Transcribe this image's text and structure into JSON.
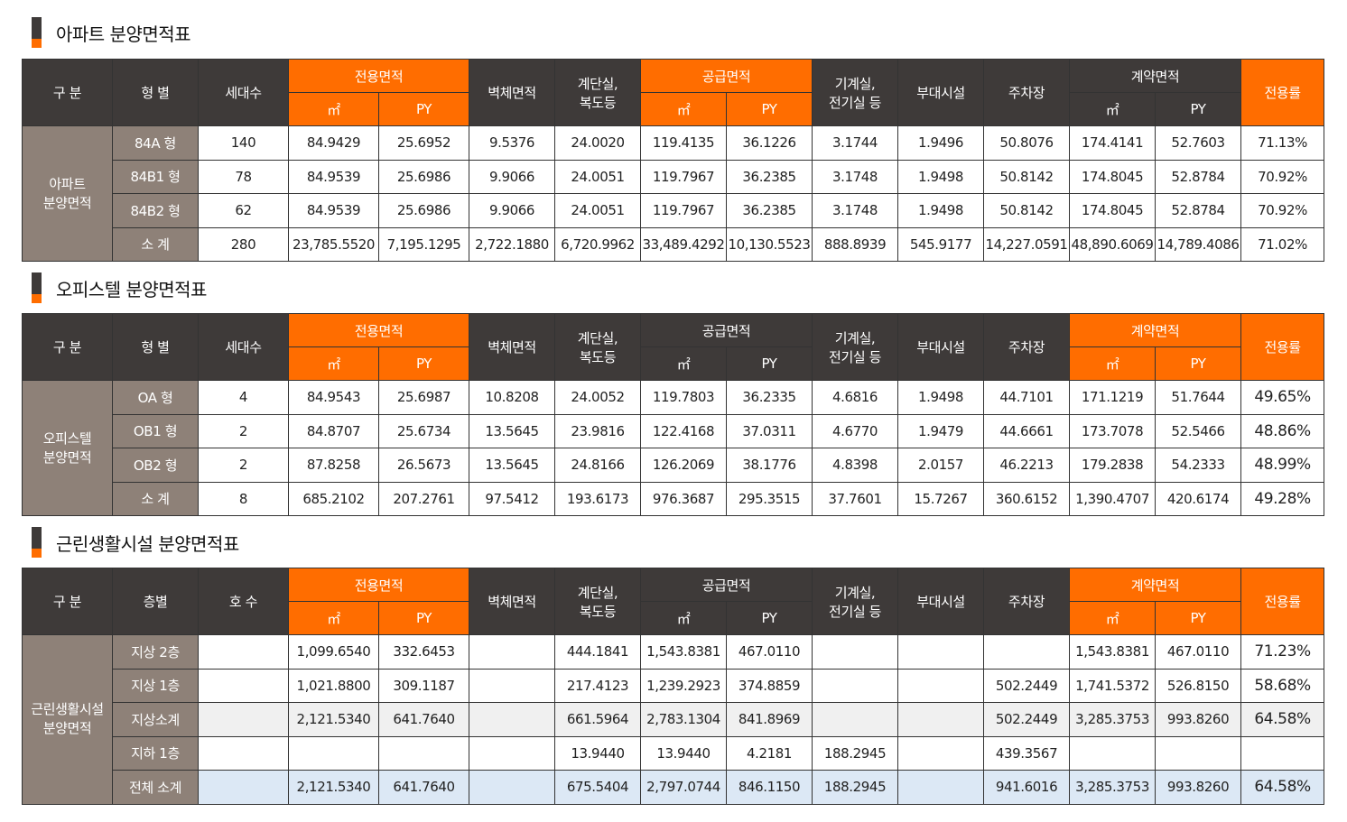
{
  "columns": {
    "gubun": "구 분",
    "type": "형 별",
    "floor": "층별",
    "units": "세대수",
    "unit_no": "호 수",
    "exclusive": "전용면적",
    "wall": "벽체면적",
    "stairs": "계단실,\n복도등",
    "supply": "공급면적",
    "machine": "기계실,\n전기실 등",
    "facility": "부대시설",
    "parking": "주차장",
    "contract": "계약면적",
    "ratio": "전용률",
    "m2": "㎡",
    "py": "PY"
  },
  "apt": {
    "title": "아파트 분양면적표",
    "group": "아파트\n분양면적",
    "rows": [
      [
        "84A 형",
        "140",
        "84.9429",
        "25.6952",
        "9.5376",
        "24.0020",
        "119.4135",
        "36.1226",
        "3.1744",
        "1.9496",
        "50.8076",
        "174.4141",
        "52.7603",
        "71.13%"
      ],
      [
        "84B1 형",
        "78",
        "84.9539",
        "25.6986",
        "9.9066",
        "24.0051",
        "119.7967",
        "36.2385",
        "3.1748",
        "1.9498",
        "50.8142",
        "174.8045",
        "52.8784",
        "70.92%"
      ],
      [
        "84B2 형",
        "62",
        "84.9539",
        "25.6986",
        "9.9066",
        "24.0051",
        "119.7967",
        "36.2385",
        "3.1748",
        "1.9498",
        "50.8142",
        "174.8045",
        "52.8784",
        "70.92%"
      ],
      [
        "소 계",
        "280",
        "23,785.5520",
        "7,195.1295",
        "2,722.1880",
        "6,720.9962",
        "33,489.4292",
        "10,130.5523",
        "888.8939",
        "545.9177",
        "14,227.0591",
        "48,890.6069",
        "14,789.4086",
        "71.02%"
      ]
    ]
  },
  "office": {
    "title": "오피스텔 분양면적표",
    "group": "오피스텔\n분양면적",
    "rows": [
      [
        "OA 형",
        "4",
        "84.9543",
        "25.6987",
        "10.8208",
        "24.0052",
        "119.7803",
        "36.2335",
        "4.6816",
        "1.9498",
        "44.7101",
        "171.1219",
        "51.7644",
        "49.65%"
      ],
      [
        "OB1 형",
        "2",
        "84.8707",
        "25.6734",
        "13.5645",
        "23.9816",
        "122.4168",
        "37.0311",
        "4.6770",
        "1.9479",
        "44.6661",
        "173.7078",
        "52.5466",
        "48.86%"
      ],
      [
        "OB2 형",
        "2",
        "87.8258",
        "26.5673",
        "13.5645",
        "24.8166",
        "126.2069",
        "38.1776",
        "4.8398",
        "2.0157",
        "46.2213",
        "179.2838",
        "54.2333",
        "48.99%"
      ],
      [
        "소 계",
        "8",
        "685.2102",
        "207.2761",
        "97.5412",
        "193.6173",
        "976.3687",
        "295.3515",
        "37.7601",
        "15.7267",
        "360.6152",
        "1,390.4707",
        "420.6174",
        "49.28%"
      ]
    ]
  },
  "retail": {
    "title": "근린생활시설 분양면적표",
    "group": "근린생활시설\n분양면적",
    "rows": [
      [
        "지상 2층",
        "",
        "1,099.6540",
        "332.6453",
        "",
        "444.1841",
        "1,543.8381",
        "467.0110",
        "",
        "",
        "",
        "1,543.8381",
        "467.0110",
        "71.23%"
      ],
      [
        "지상 1층",
        "",
        "1,021.8800",
        "309.1187",
        "",
        "217.4123",
        "1,239.2923",
        "374.8859",
        "",
        "",
        "502.2449",
        "1,741.5372",
        "526.8150",
        "58.68%"
      ],
      [
        "지상소계",
        "",
        "2,121.5340",
        "641.7640",
        "",
        "661.5964",
        "2,783.1304",
        "841.8969",
        "",
        "",
        "502.2449",
        "3,285.3753",
        "993.8260",
        "64.58%"
      ],
      [
        "지하 1층",
        "",
        "",
        "",
        "",
        "13.9440",
        "13.9440",
        "4.2181",
        "188.2945",
        "",
        "439.3567",
        "",
        "",
        ""
      ],
      [
        "전체 소계",
        "",
        "2,121.5340",
        "641.7640",
        "",
        "675.5404",
        "2,797.0744",
        "846.1150",
        "188.2945",
        "",
        "941.6016",
        "3,285.3753",
        "993.8260",
        "64.58%"
      ]
    ]
  },
  "colors": {
    "dark": "#3e3a39",
    "orange": "#ff6d00",
    "taupe": "#8e8178",
    "subtotal": "#f0f0f0",
    "total": "#dce8f5"
  }
}
